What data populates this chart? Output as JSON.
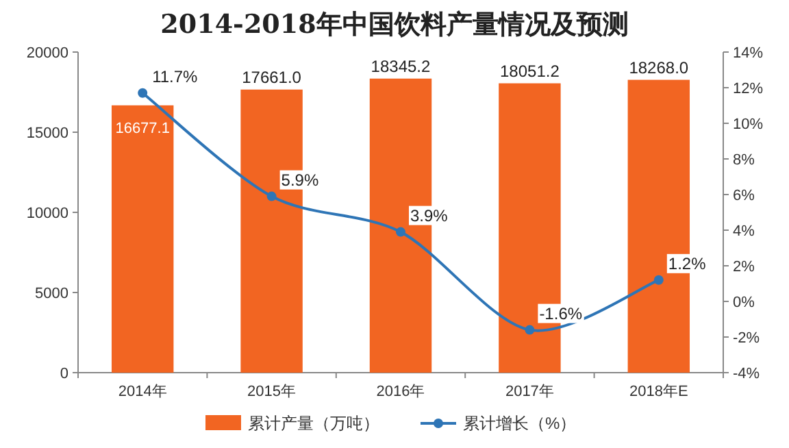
{
  "chart_data": {
    "type": "bar",
    "title": "2014-2018年中国饮料产量情况及预测",
    "categories": [
      "2014年",
      "2015年",
      "2016年",
      "2017年",
      "2018年E"
    ],
    "series": [
      {
        "name": "累计产量（万吨）",
        "color": "#f26522",
        "values": [
          16677.1,
          17661.0,
          18345.2,
          18051.2,
          18268.0
        ],
        "value_labels": [
          "16677.1",
          "17661.0",
          "18345.2",
          "18051.2",
          "18268.0"
        ]
      },
      {
        "name": "累计增长（%）",
        "type": "line",
        "axis": "y2",
        "color": "#2e75b6",
        "marker": "circle",
        "values": [
          11.7,
          5.9,
          3.9,
          -1.6,
          1.2
        ],
        "value_labels": [
          "11.7%",
          "5.9%",
          "3.9%",
          "-1.6%",
          "1.2%"
        ]
      }
    ],
    "ylim": [
      0,
      20000
    ],
    "yticks": [
      0,
      5000,
      10000,
      15000,
      20000
    ],
    "y2lim": [
      -4,
      14
    ],
    "y2ticks": [
      {
        "value": -4,
        "label": "-4%"
      },
      {
        "value": -2,
        "label": "-2%"
      },
      {
        "value": 0,
        "label": "0%"
      },
      {
        "value": 2,
        "label": "2%"
      },
      {
        "value": 4,
        "label": "4%"
      },
      {
        "value": 6,
        "label": "6%"
      },
      {
        "value": 8,
        "label": "8%"
      },
      {
        "value": 10,
        "label": "10%"
      },
      {
        "value": 12,
        "label": "12%"
      },
      {
        "value": 14,
        "label": "14%"
      }
    ],
    "legend": "bottom",
    "grid": false
  }
}
